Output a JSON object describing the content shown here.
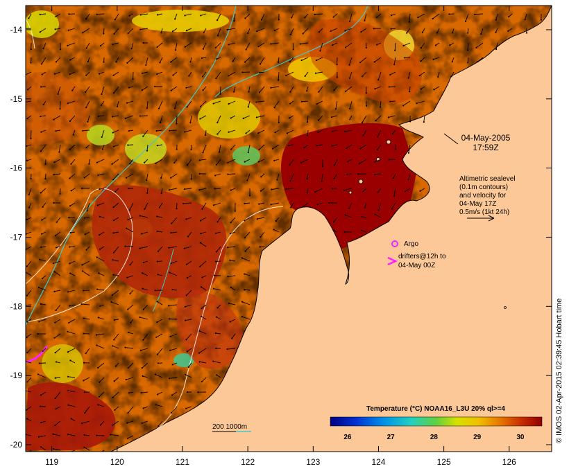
{
  "map": {
    "lon_ticks": [
      "119",
      "120",
      "121",
      "122",
      "123",
      "124",
      "125",
      "126"
    ],
    "lat_ticks": [
      "-14",
      "-15",
      "-16",
      "-17",
      "-18",
      "-19",
      "-20"
    ],
    "lon_range": [
      118.6,
      126.65
    ],
    "lat_range": [
      -20.1,
      -13.65
    ]
  },
  "annotations": {
    "datetime_line1": "04-May-2005",
    "datetime_line2": "17:59Z",
    "altimetry_lines": [
      "Altimetric sealevel",
      "(0.1m contours)",
      "and velocity for",
      "04-May 17Z",
      "0.5m/s (1kt 24h)"
    ],
    "argo_label": "Argo",
    "drifters_lines": [
      "drifters@12h to",
      "04-May 00Z"
    ],
    "isobath_label": "200  1000m"
  },
  "colorbar": {
    "title": "Temperature (°C) NOAA16_L3U 20% ql>=4",
    "ticks": [
      "26",
      "27",
      "28",
      "29",
      "30"
    ],
    "range": [
      25.6,
      30.5
    ]
  },
  "credit": "© IMOS 02-Apr-2015 02:39:45 Hobart time",
  "colors": {
    "land": "#fcc898",
    "warm": "#b82808",
    "hot": "#9a0000",
    "orange": "#e07800",
    "yellow": "#f0d800",
    "cyan_isobath": "#40c8c8",
    "magenta": "#ff20ff"
  }
}
